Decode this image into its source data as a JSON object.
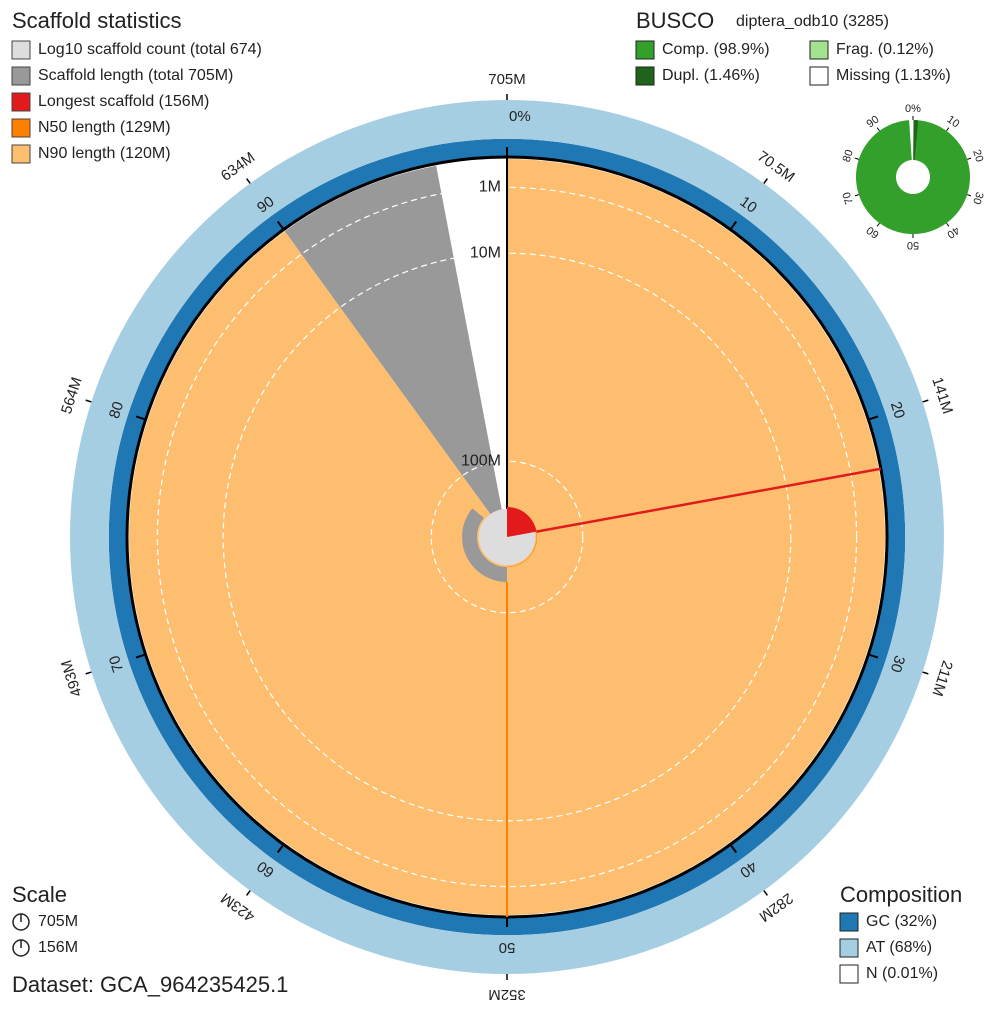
{
  "chart_data": {
    "type": "snail",
    "dataset": "Dataset: GCA_964235425.1",
    "radial_scale": "sqrt",
    "rlim": [
      0,
      156
    ],
    "rticks": [
      {
        "value": 1,
        "label": "1M"
      },
      {
        "value": 10,
        "label": "10M"
      },
      {
        "value": 100,
        "label": "100M"
      }
    ],
    "pct_ticks": [
      {
        "value": 0,
        "label": "0%"
      },
      10,
      20,
      30,
      40,
      50,
      60,
      70,
      80,
      90
    ],
    "length_ticks": [
      {
        "value": 0,
        "label": "705M"
      },
      {
        "value": 10,
        "label": "70.5M"
      },
      {
        "value": 20,
        "label": "141M"
      },
      {
        "value": 30,
        "label": "211M"
      },
      {
        "value": 40,
        "label": "282M"
      },
      {
        "value": 50,
        "label": "352M"
      },
      {
        "value": 60,
        "label": "423M"
      },
      {
        "value": 70,
        "label": "493M"
      },
      {
        "value": 80,
        "label": "564M"
      },
      {
        "value": 90,
        "label": "634M"
      }
    ],
    "scaffold_stats": {
      "title": "Scaffold statistics",
      "count": {
        "label": "Log10 scaffold count (total 674)",
        "value": 674,
        "color": "#dddddd"
      },
      "length": {
        "label": "Scaffold length (total 705M)",
        "value": 705,
        "color": "#999999"
      },
      "longest": {
        "label": "Longest scaffold (156M)",
        "value": 156,
        "color": "#e31a1c"
      },
      "n50": {
        "label": "N50 length (129M)",
        "value": 129,
        "color": "#ff7f00"
      },
      "n90": {
        "label": "N90 length (120M)",
        "value": 120,
        "color": "#fdbf6f"
      }
    },
    "busco": {
      "title": "BUSCO",
      "lineage": "diptera_odb10 (3285)",
      "ticks": [
        {
          "value": 0,
          "label": "0%"
        },
        10,
        20,
        30,
        40,
        50,
        60,
        70,
        80,
        90
      ],
      "series": [
        {
          "name": "Comp. (98.9%)",
          "value": 98.9,
          "color": "#33a02c"
        },
        {
          "name": "Dupl. (1.46%)",
          "value": 1.46,
          "color": "#20641c"
        },
        {
          "name": "Frag. (0.12%)",
          "value": 0.12,
          "color": "#a3e28f"
        },
        {
          "name": "Missing (1.13%)",
          "value": 1.13,
          "color": "#ffffff"
        }
      ]
    },
    "scale": {
      "title": "Scale",
      "items": [
        "705M",
        "156M"
      ]
    },
    "composition": {
      "title": "Composition",
      "series": [
        {
          "name": "GC (32%)",
          "value": 32,
          "color": "#1f78b4"
        },
        {
          "name": "AT (68%)",
          "value": 68,
          "color": "#a6cee3"
        },
        {
          "name": "N (0.01%)",
          "value": 0.01,
          "color": "#ffffff"
        }
      ]
    }
  }
}
